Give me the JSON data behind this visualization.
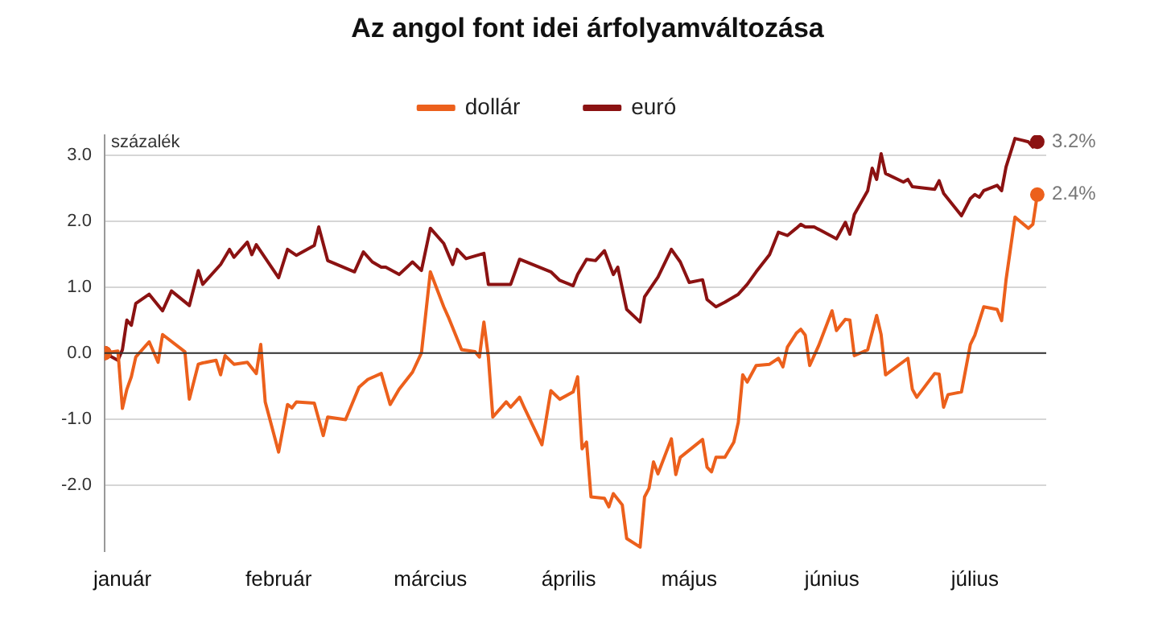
{
  "chart_data": {
    "type": "line",
    "title": "Az angol font idei árfolyamváltozása",
    "ylabel": "százalék",
    "legend": "top",
    "grid": "y",
    "xlim": [
      "--01-01",
      "--07-31"
    ],
    "xticks": [
      {
        "value": "--01-05",
        "label": "január"
      },
      {
        "value": "--02-09",
        "label": "február"
      },
      {
        "value": "--03-15",
        "label": "március"
      },
      {
        "value": "--04-15",
        "label": "április"
      },
      {
        "value": "--05-12",
        "label": "május"
      },
      {
        "value": "--06-13",
        "label": "június"
      },
      {
        "value": "--07-15",
        "label": "július"
      }
    ],
    "ylim": [
      -3,
      3.3
    ],
    "yticks": [
      {
        "value": -2,
        "label": "-2.0"
      },
      {
        "value": -1,
        "label": "-1.0"
      },
      {
        "value": 0,
        "label": "0.0"
      },
      {
        "value": 1,
        "label": "1.0"
      },
      {
        "value": 2,
        "label": "2.0"
      },
      {
        "value": 3,
        "label": "3.0"
      }
    ],
    "ref_lines": [
      {
        "axis": "y",
        "value": 0,
        "color": "#333333"
      }
    ],
    "annotations": [
      {
        "text": "3.2%",
        "x": "--07-29",
        "y": 3.2
      },
      {
        "text": "2.4%",
        "x": "--07-29",
        "y": 2.4
      }
    ],
    "series": [
      {
        "name": "dollár",
        "color": "#ec601c",
        "x": [
          "--01-01",
          "--01-04",
          "--01-05",
          "--01-06",
          "--01-07",
          "--01-08",
          "--01-11",
          "--01-13",
          "--01-14",
          "--01-19",
          "--01-20",
          "--01-22",
          "--01-23",
          "--01-26",
          "--01-27",
          "--01-28",
          "--01-30",
          "--02-02",
          "--02-04",
          "--02-05",
          "--02-06",
          "--02-09",
          "--02-11",
          "--02-12",
          "--02-13",
          "--02-17",
          "--02-19",
          "--02-20",
          "--02-24",
          "--02-27",
          "--03-01",
          "--03-04",
          "--03-06",
          "--03-08",
          "--03-11",
          "--03-13",
          "--03-15",
          "--03-18",
          "--03-19",
          "--03-22",
          "--03-25",
          "--03-26",
          "--03-27",
          "--03-28",
          "--03-29",
          "--04-01",
          "--04-02",
          "--04-04",
          "--04-05",
          "--04-09",
          "--04-11",
          "--04-13",
          "--04-16",
          "--04-17",
          "--04-18",
          "--04-19",
          "--04-20",
          "--04-23",
          "--04-24",
          "--04-25",
          "--04-27",
          "--04-28",
          "--05-01",
          "--05-02",
          "--05-03",
          "--05-04",
          "--05-05",
          "--05-08",
          "--05-09",
          "--05-10",
          "--05-15",
          "--05-16",
          "--05-17",
          "--05-18",
          "--05-20",
          "--05-22",
          "--05-23",
          "--05-24",
          "--05-25",
          "--05-27",
          "--05-30",
          "--06-01",
          "--06-02",
          "--06-03",
          "--06-05",
          "--06-06",
          "--06-07",
          "--06-08",
          "--06-10",
          "--06-13",
          "--06-14",
          "--06-16",
          "--06-17",
          "--06-18",
          "--06-21",
          "--06-23",
          "--06-24",
          "--06-25",
          "--06-30",
          "--07-01",
          "--07-02",
          "--07-06",
          "--07-07",
          "--07-08",
          "--07-09",
          "--07-12",
          "--07-14",
          "--07-15",
          "--07-17",
          "--07-20",
          "--07-21",
          "--07-22",
          "--07-24",
          "--07-27",
          "--07-28",
          "--07-29"
        ],
        "values": [
          0,
          0.03,
          -0.84,
          -0.55,
          -0.36,
          -0.06,
          0.17,
          -0.14,
          0.28,
          0.02,
          -0.7,
          -0.17,
          -0.15,
          -0.11,
          -0.33,
          -0.04,
          -0.17,
          -0.14,
          -0.31,
          0.13,
          -0.74,
          -1.5,
          -0.78,
          -0.83,
          -0.74,
          -0.76,
          -1.25,
          -0.97,
          -1.01,
          -0.52,
          -0.4,
          -0.31,
          -0.78,
          -0.55,
          -0.29,
          0,
          1.23,
          0.7,
          0.55,
          0.05,
          0.02,
          -0.06,
          0.47,
          -0.06,
          -0.97,
          -0.74,
          -0.82,
          -0.67,
          -0.82,
          -1.39,
          -0.57,
          -0.7,
          -0.59,
          -0.36,
          -1.45,
          -1.35,
          -2.18,
          -2.2,
          -2.33,
          -2.13,
          -2.3,
          -2.81,
          -2.94,
          -2.18,
          -2.05,
          -1.65,
          -1.83,
          -1.3,
          -1.84,
          -1.58,
          -1.31,
          -1.73,
          -1.8,
          -1.58,
          -1.58,
          -1.35,
          -1.05,
          -0.33,
          -0.44,
          -0.19,
          -0.17,
          -0.08,
          -0.21,
          0.09,
          0.3,
          0.36,
          0.27,
          -0.19,
          0.11,
          0.64,
          0.34,
          0.51,
          0.5,
          -0.04,
          0.05,
          0.57,
          0.28,
          -0.33,
          -0.08,
          -0.55,
          -0.67,
          -0.31,
          -0.32,
          -0.82,
          -0.63,
          -0.59,
          0.13,
          0.27,
          0.7,
          0.66,
          0.49,
          1.11,
          2.06,
          1.89,
          1.95,
          2.4
        ]
      },
      {
        "name": "euró",
        "color": "#8b1212",
        "x": [
          "--01-01",
          "--01-04",
          "--01-05",
          "--01-06",
          "--01-07",
          "--01-08",
          "--01-11",
          "--01-14",
          "--01-16",
          "--01-20",
          "--01-22",
          "--01-23",
          "--01-27",
          "--01-29",
          "--01-30",
          "--02-02",
          "--02-03",
          "--02-04",
          "--02-09",
          "--02-11",
          "--02-13",
          "--02-17",
          "--02-18",
          "--02-20",
          "--02-26",
          "--02-28",
          "--03-02",
          "--03-04",
          "--03-05",
          "--03-08",
          "--03-11",
          "--03-13",
          "--03-15",
          "--03-18",
          "--03-20",
          "--03-21",
          "--03-23",
          "--03-27",
          "--03-28",
          "--04-02",
          "--04-04",
          "--04-11",
          "--04-13",
          "--04-16",
          "--04-17",
          "--04-19",
          "--04-21",
          "--04-23",
          "--04-25",
          "--04-26",
          "--04-28",
          "--05-01",
          "--05-02",
          "--05-05",
          "--05-08",
          "--05-10",
          "--05-12",
          "--05-15",
          "--05-16",
          "--05-18",
          "--05-20",
          "--05-23",
          "--05-25",
          "--05-27",
          "--05-30",
          "--06-01",
          "--06-03",
          "--06-05",
          "--06-06",
          "--06-07",
          "--06-09",
          "--06-14",
          "--06-16",
          "--06-17",
          "--06-18",
          "--06-21",
          "--06-22",
          "--06-23",
          "--06-24",
          "--06-25",
          "--06-29",
          "--06-30",
          "--07-01",
          "--07-06",
          "--07-07",
          "--07-08",
          "--07-12",
          "--07-14",
          "--07-15",
          "--07-16",
          "--07-17",
          "--07-20",
          "--07-21",
          "--07-22",
          "--07-24",
          "--07-27",
          "--07-28",
          "--07-29"
        ],
        "values": [
          0,
          -0.11,
          0.05,
          0.5,
          0.42,
          0.75,
          0.89,
          0.64,
          0.94,
          0.72,
          1.25,
          1.04,
          1.34,
          1.57,
          1.45,
          1.68,
          1.49,
          1.64,
          1.14,
          1.57,
          1.48,
          1.63,
          1.91,
          1.4,
          1.23,
          1.53,
          1.38,
          1.3,
          1.3,
          1.19,
          1.38,
          1.25,
          1.89,
          1.66,
          1.34,
          1.57,
          1.43,
          1.51,
          1.04,
          1.04,
          1.42,
          1.23,
          1.1,
          1.02,
          1.19,
          1.42,
          1.4,
          1.55,
          1.19,
          1.3,
          0.66,
          0.47,
          0.85,
          1.15,
          1.57,
          1.38,
          1.07,
          1.11,
          0.81,
          0.7,
          0.77,
          0.89,
          1.04,
          1.23,
          1.49,
          1.83,
          1.78,
          1.89,
          1.95,
          1.91,
          1.91,
          1.73,
          1.98,
          1.8,
          2.1,
          2.46,
          2.8,
          2.63,
          3.02,
          2.72,
          2.59,
          2.63,
          2.52,
          2.48,
          2.61,
          2.42,
          2.08,
          2.34,
          2.4,
          2.36,
          2.46,
          2.54,
          2.46,
          2.82,
          3.25,
          3.2,
          3.12,
          3.2
        ]
      }
    ]
  }
}
